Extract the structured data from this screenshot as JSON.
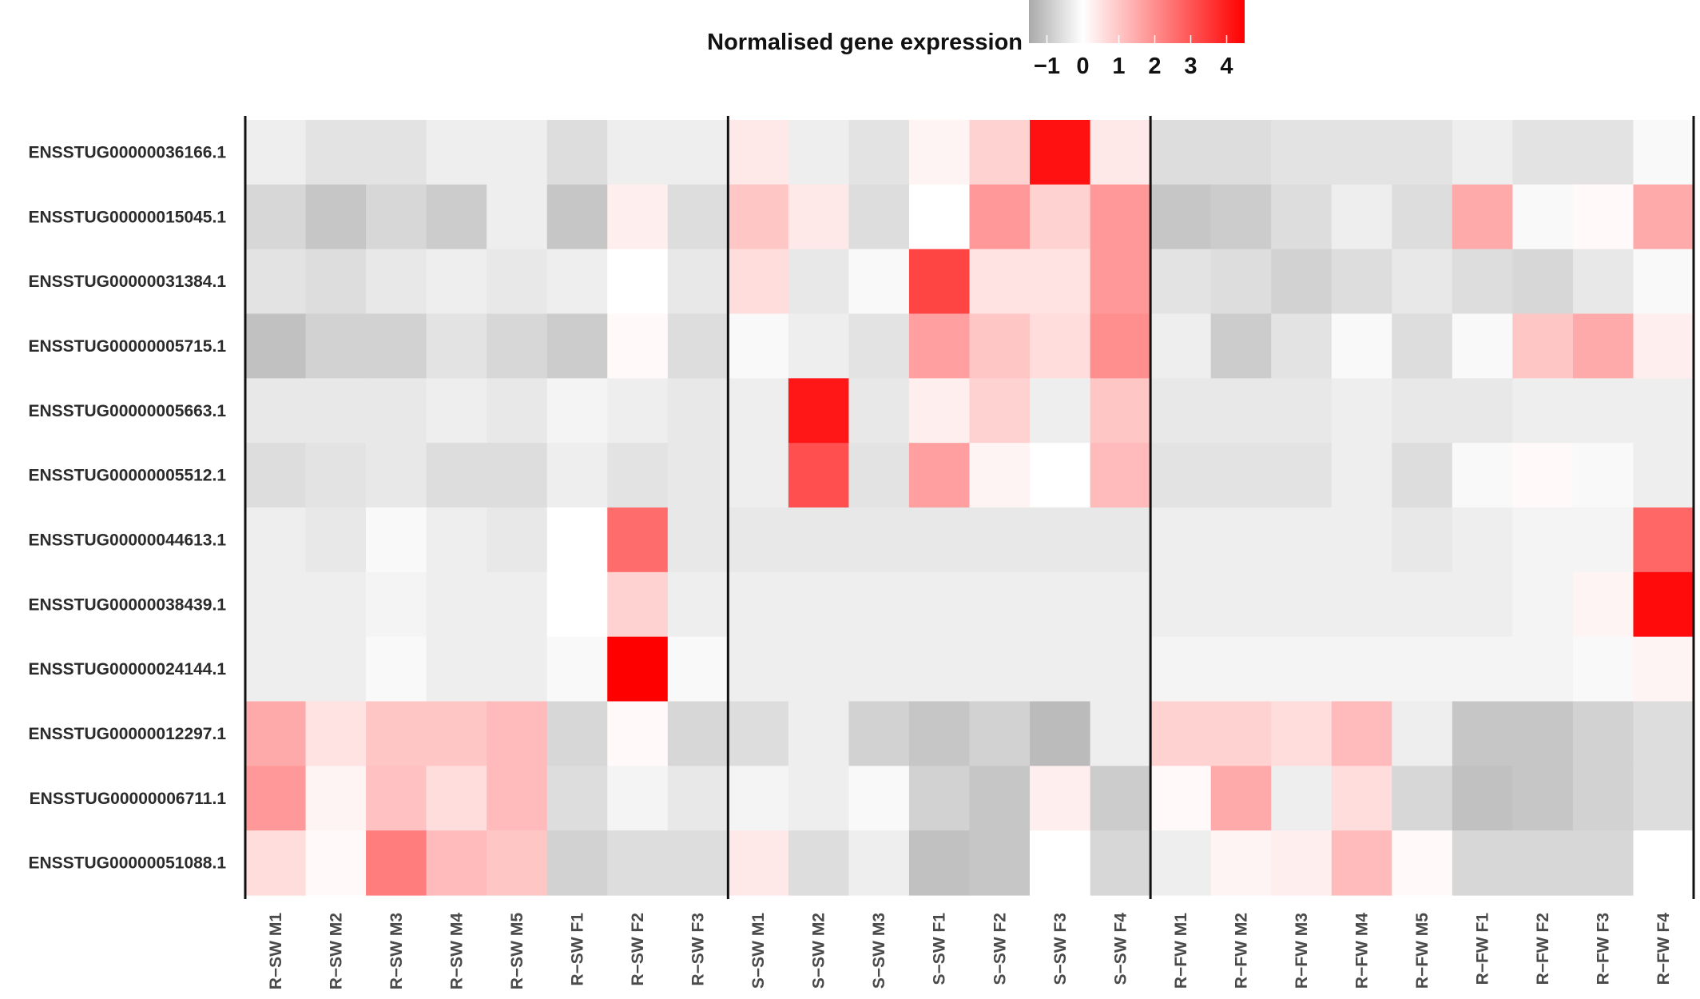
{
  "chart_data": {
    "type": "heatmap",
    "legend_title": "Normalised gene expression",
    "legend_ticks": [
      "−1",
      "0",
      "1",
      "2",
      "3",
      "4"
    ],
    "legend_tick_values": [
      -1,
      0,
      1,
      2,
      3,
      4
    ],
    "value_range": [
      -1.5,
      4.5
    ],
    "colors": {
      "low": "#aaaaaa",
      "mid": "#ffffff",
      "high": "#ff0000"
    },
    "legend_placement": "top-right",
    "group_separators_after": [
      7,
      14
    ],
    "rows": [
      "ENSSTUG00000036166.1",
      "ENSSTUG00000015045.1",
      "ENSSTUG00000031384.1",
      "ENSSTUG00000005715.1",
      "ENSSTUG00000005663.1",
      "ENSSTUG00000005512.1",
      "ENSSTUG00000044613.1",
      "ENSSTUG00000038439.1",
      "ENSSTUG00000024144.1",
      "ENSSTUG00000012297.1",
      "ENSSTUG00000006711.1",
      "ENSSTUG00000051088.1"
    ],
    "columns": [
      "R−SW M1",
      "R−SW M2",
      "R−SW M3",
      "R−SW M4",
      "R−SW M5",
      "R−SW F1",
      "R−SW F2",
      "R−SW F3",
      "S−SW M1",
      "S−SW M2",
      "S−SW M3",
      "S−SW F1",
      "S−SW F2",
      "S−SW F3",
      "S−SW F4",
      "R−FW M1",
      "R−FW M2",
      "R−FW M3",
      "R−FW M4",
      "R−FW M5",
      "R−FW F1",
      "R−FW F2",
      "R−FW F3",
      "R−FW F4"
    ],
    "values": [
      [
        -0.3,
        -0.5,
        -0.5,
        -0.3,
        -0.3,
        -0.6,
        -0.3,
        -0.3,
        0.4,
        -0.3,
        -0.5,
        0.2,
        0.8,
        4.2,
        0.4,
        -0.6,
        -0.6,
        -0.5,
        -0.5,
        -0.5,
        -0.3,
        -0.5,
        -0.5,
        -0.1
      ],
      [
        -0.7,
        -1.0,
        -0.7,
        -0.9,
        -0.3,
        -1.0,
        0.3,
        -0.6,
        1.0,
        0.4,
        -0.6,
        0.0,
        1.8,
        0.8,
        1.8,
        -1.0,
        -0.9,
        -0.6,
        -0.3,
        -0.6,
        1.5,
        -0.1,
        0.1,
        1.5
      ],
      [
        -0.5,
        -0.6,
        -0.4,
        -0.3,
        -0.4,
        -0.3,
        0.0,
        -0.4,
        0.6,
        -0.4,
        -0.1,
        3.3,
        0.5,
        0.5,
        1.8,
        -0.5,
        -0.6,
        -0.8,
        -0.6,
        -0.4,
        -0.6,
        -0.7,
        -0.4,
        -0.1
      ],
      [
        -1.1,
        -0.8,
        -0.8,
        -0.5,
        -0.7,
        -0.9,
        0.1,
        -0.6,
        -0.1,
        -0.3,
        -0.5,
        1.7,
        1.0,
        0.6,
        2.0,
        -0.3,
        -0.9,
        -0.5,
        -0.1,
        -0.6,
        -0.1,
        1.0,
        1.5,
        0.3
      ],
      [
        -0.4,
        -0.4,
        -0.4,
        -0.3,
        -0.4,
        -0.2,
        -0.3,
        -0.4,
        -0.3,
        4.1,
        -0.4,
        0.3,
        0.8,
        -0.3,
        1.0,
        -0.4,
        -0.4,
        -0.4,
        -0.3,
        -0.4,
        -0.4,
        -0.3,
        -0.3,
        -0.3
      ],
      [
        -0.6,
        -0.5,
        -0.4,
        -0.6,
        -0.6,
        -0.3,
        -0.5,
        -0.4,
        -0.3,
        3.1,
        -0.5,
        1.7,
        0.2,
        0.0,
        1.2,
        -0.5,
        -0.5,
        -0.5,
        -0.3,
        -0.6,
        -0.1,
        0.1,
        -0.1,
        -0.3
      ],
      [
        -0.3,
        -0.4,
        -0.1,
        -0.3,
        -0.4,
        0.0,
        2.6,
        -0.4,
        -0.4,
        -0.4,
        -0.4,
        -0.4,
        -0.4,
        -0.4,
        -0.4,
        -0.3,
        -0.3,
        -0.3,
        -0.3,
        -0.4,
        -0.3,
        -0.2,
        -0.2,
        2.7
      ],
      [
        -0.3,
        -0.3,
        -0.2,
        -0.3,
        -0.3,
        0.0,
        0.8,
        -0.3,
        -0.3,
        -0.3,
        -0.3,
        -0.3,
        -0.3,
        -0.3,
        -0.3,
        -0.3,
        -0.3,
        -0.3,
        -0.3,
        -0.3,
        -0.3,
        -0.2,
        0.2,
        4.3
      ],
      [
        -0.3,
        -0.3,
        -0.1,
        -0.3,
        -0.3,
        -0.1,
        4.5,
        -0.1,
        -0.3,
        -0.3,
        -0.3,
        -0.3,
        -0.3,
        -0.3,
        -0.3,
        -0.2,
        -0.2,
        -0.2,
        -0.2,
        -0.2,
        -0.2,
        -0.2,
        -0.1,
        0.2
      ],
      [
        1.5,
        0.5,
        1.0,
        1.0,
        1.2,
        -0.7,
        0.1,
        -0.7,
        -0.6,
        -0.3,
        -0.8,
        -1.0,
        -0.8,
        -1.2,
        -0.3,
        0.8,
        0.8,
        0.6,
        1.2,
        -0.3,
        -1.0,
        -1.0,
        -0.8,
        -0.6
      ],
      [
        1.8,
        0.2,
        1.1,
        0.6,
        1.2,
        -0.6,
        -0.2,
        -0.4,
        -0.2,
        -0.3,
        -0.1,
        -0.8,
        -1.0,
        0.3,
        -0.9,
        0.1,
        1.5,
        -0.3,
        0.6,
        -0.7,
        -1.1,
        -1.0,
        -0.8,
        -0.6
      ],
      [
        0.6,
        0.1,
        2.3,
        1.2,
        1.0,
        -0.8,
        -0.6,
        -0.6,
        0.4,
        -0.6,
        -0.3,
        -1.1,
        -1.0,
        0.0,
        -0.7,
        -0.3,
        0.2,
        0.3,
        1.2,
        0.1,
        -0.7,
        -0.7,
        -0.7,
        0.0
      ]
    ]
  }
}
